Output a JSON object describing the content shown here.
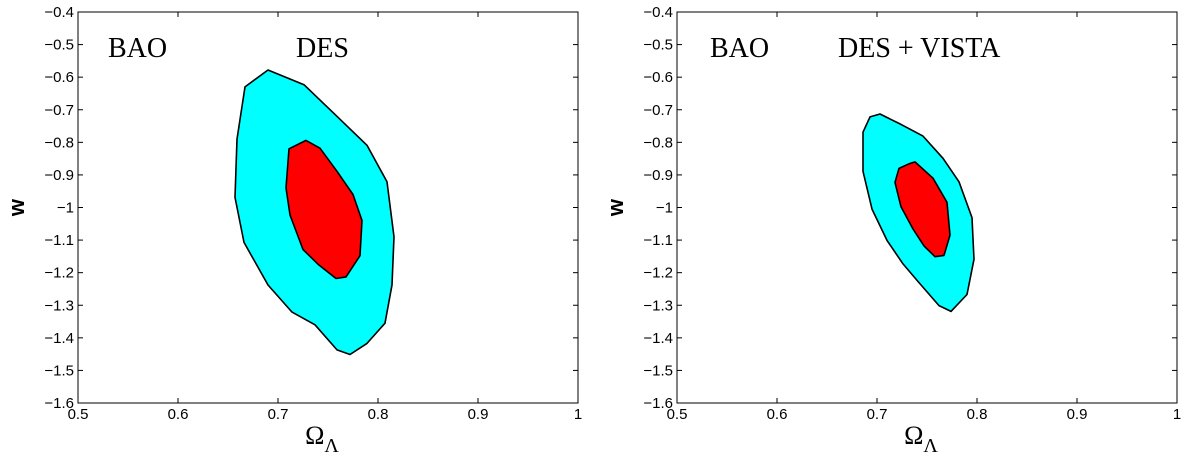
{
  "chart_data": [
    {
      "type": "contour",
      "title": "",
      "xlabel": "Ω_Λ",
      "xlabel_main": "Ω",
      "xlabel_sub": "Λ",
      "ylabel": "w",
      "xlim": [
        0.5,
        1.0
      ],
      "ylim": [
        -1.6,
        -0.4
      ],
      "x_ticks": [
        "0.5",
        "0.6",
        "0.7",
        "0.8",
        "0.9",
        "1"
      ],
      "y_ticks": [
        "-0.4",
        "-0.5",
        "-0.6",
        "-0.7",
        "-0.8",
        "-0.9",
        "-1",
        "-1.1",
        "-1.2",
        "-1.3",
        "-1.4",
        "-1.5",
        "-1.6"
      ],
      "annotations": [
        "BAO",
        "DES"
      ],
      "grid": false,
      "series": [
        {
          "color": "#00ffff",
          "points": [
            [
              0.69,
              -0.578
            ],
            [
              0.726,
              -0.623
            ],
            [
              0.764,
              -0.735
            ],
            [
              0.789,
              -0.809
            ],
            [
              0.809,
              -0.921
            ],
            [
              0.816,
              -1.09
            ],
            [
              0.814,
              -1.238
            ],
            [
              0.807,
              -1.355
            ],
            [
              0.789,
              -1.417
            ],
            [
              0.772,
              -1.451
            ],
            [
              0.759,
              -1.437
            ],
            [
              0.737,
              -1.36
            ],
            [
              0.714,
              -1.321
            ],
            [
              0.69,
              -1.238
            ],
            [
              0.666,
              -1.107
            ],
            [
              0.657,
              -0.969
            ],
            [
              0.659,
              -0.79
            ],
            [
              0.667,
              -0.63
            ]
          ]
        },
        {
          "color": "#ff0000",
          "points": [
            [
              0.728,
              -0.794
            ],
            [
              0.742,
              -0.818
            ],
            [
              0.759,
              -0.889
            ],
            [
              0.775,
              -0.96
            ],
            [
              0.784,
              -1.04
            ],
            [
              0.782,
              -1.148
            ],
            [
              0.768,
              -1.213
            ],
            [
              0.758,
              -1.218
            ],
            [
              0.74,
              -1.174
            ],
            [
              0.725,
              -1.129
            ],
            [
              0.712,
              -1.023
            ],
            [
              0.708,
              -0.94
            ],
            [
              0.711,
              -0.82
            ]
          ]
        }
      ]
    },
    {
      "type": "contour",
      "title": "",
      "xlabel": "Ω_Λ",
      "xlabel_main": "Ω",
      "xlabel_sub": "Λ",
      "ylabel": "w",
      "xlim": [
        0.5,
        1.0
      ],
      "ylim": [
        -1.6,
        -0.4
      ],
      "x_ticks": [
        "0.5",
        "0.6",
        "0.7",
        "0.8",
        "0.9",
        "1"
      ],
      "y_ticks": [
        "-0.4",
        "-0.5",
        "-0.6",
        "-0.7",
        "-0.8",
        "-0.9",
        "-1",
        "-1.1",
        "-1.2",
        "-1.3",
        "-1.4",
        "-1.5",
        "-1.6"
      ],
      "annotations": [
        "BAO",
        "DES + VISTA"
      ],
      "grid": false,
      "series": [
        {
          "color": "#00ffff",
          "points": [
            [
              0.703,
              -0.713
            ],
            [
              0.724,
              -0.745
            ],
            [
              0.746,
              -0.781
            ],
            [
              0.766,
              -0.849
            ],
            [
              0.782,
              -0.921
            ],
            [
              0.795,
              -1.031
            ],
            [
              0.797,
              -1.159
            ],
            [
              0.79,
              -1.267
            ],
            [
              0.774,
              -1.319
            ],
            [
              0.762,
              -1.301
            ],
            [
              0.741,
              -1.227
            ],
            [
              0.726,
              -1.173
            ],
            [
              0.71,
              -1.101
            ],
            [
              0.695,
              -1.005
            ],
            [
              0.686,
              -0.889
            ],
            [
              0.686,
              -0.769
            ],
            [
              0.693,
              -0.722
            ]
          ]
        },
        {
          "color": "#ff0000",
          "points": [
            [
              0.738,
              -0.86
            ],
            [
              0.756,
              -0.91
            ],
            [
              0.77,
              -0.984
            ],
            [
              0.773,
              -1.085
            ],
            [
              0.767,
              -1.147
            ],
            [
              0.758,
              -1.151
            ],
            [
              0.747,
              -1.118
            ],
            [
              0.736,
              -1.066
            ],
            [
              0.724,
              -0.998
            ],
            [
              0.718,
              -0.923
            ],
            [
              0.722,
              -0.88
            ],
            [
              0.732,
              -0.866
            ]
          ]
        }
      ]
    }
  ]
}
